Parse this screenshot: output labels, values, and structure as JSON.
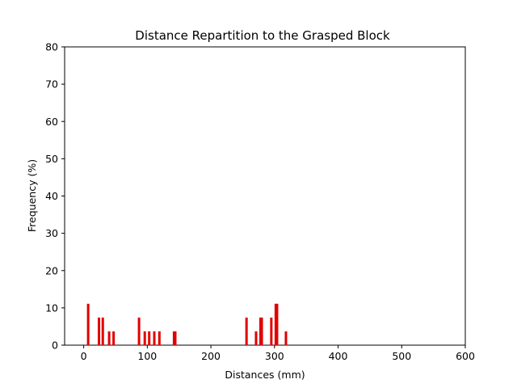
{
  "chart_data": {
    "type": "bar",
    "title": "Distance Repartition to the Grasped Block",
    "xlabel": "Distances (mm)",
    "ylabel": "Frequency (%)",
    "xlim": [
      -30,
      600
    ],
    "ylim": [
      0,
      80
    ],
    "xticks": [
      0,
      100,
      200,
      300,
      400,
      500,
      600
    ],
    "yticks": [
      0,
      10,
      20,
      30,
      40,
      50,
      60,
      70,
      80
    ],
    "bar_color": "#e00000",
    "grid": false,
    "bars": [
      {
        "x": 7,
        "y": 11.1
      },
      {
        "x": 24,
        "y": 7.4
      },
      {
        "x": 30,
        "y": 7.4
      },
      {
        "x": 40,
        "y": 3.7
      },
      {
        "x": 47,
        "y": 3.7
      },
      {
        "x": 87,
        "y": 7.4
      },
      {
        "x": 96,
        "y": 3.7
      },
      {
        "x": 103,
        "y": 3.7
      },
      {
        "x": 111,
        "y": 3.7
      },
      {
        "x": 119,
        "y": 3.7
      },
      {
        "x": 142,
        "y": 3.7
      },
      {
        "x": 144,
        "y": 3.7
      },
      {
        "x": 256,
        "y": 7.4
      },
      {
        "x": 271,
        "y": 3.7
      },
      {
        "x": 278,
        "y": 7.4
      },
      {
        "x": 280,
        "y": 7.4
      },
      {
        "x": 295,
        "y": 7.4
      },
      {
        "x": 302,
        "y": 11.1
      },
      {
        "x": 304,
        "y": 11.1
      },
      {
        "x": 318,
        "y": 3.7
      }
    ]
  }
}
